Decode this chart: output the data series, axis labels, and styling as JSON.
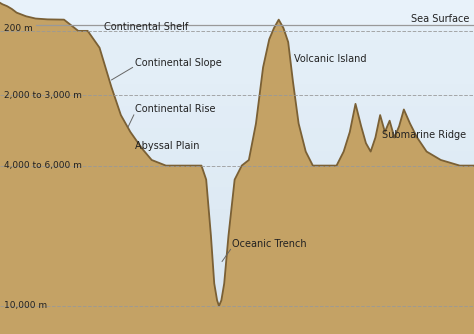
{
  "colors": {
    "background": "#C4A265",
    "ocean_light": "#E8F2FA",
    "ocean_mid": "#B8D4E8",
    "ocean_dark": "#7AAEC8",
    "seafloor_line": "#7A6035",
    "dashed_line": "#999999",
    "surface_line": "#999999",
    "text_color": "#222222"
  },
  "sea_surface_label": "Sea Surface",
  "depth_labels": [
    {
      "text": "200 m",
      "yd": -200
    },
    {
      "text": "2,000 to 3,000 m",
      "yd": -2500
    },
    {
      "text": "4,000 to 6,000 m",
      "yd": -5000
    },
    {
      "text": "10,000 m",
      "yd": -10000
    }
  ],
  "figsize": [
    4.74,
    3.34
  ],
  "dpi": 100,
  "ylim_bottom": -11000,
  "ylim_top": 900,
  "xlim_left": 0,
  "xlim_right": 10
}
